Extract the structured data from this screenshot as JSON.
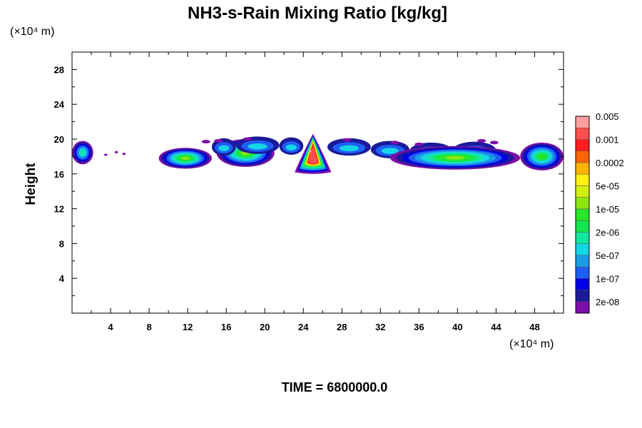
{
  "chart_data": {
    "type": "heatmap",
    "title": "NH3-s-Rain Mixing Ratio [kg/kg]",
    "ylabel": "Height",
    "xlabel": "",
    "x_unit": "(×10⁴ m)",
    "y_unit": "(×10⁴ m)",
    "time_label": "TIME = 6800000.0",
    "xlim": [
      0,
      51
    ],
    "ylim": [
      0,
      30
    ],
    "x_ticks": [
      "4",
      "8",
      "12",
      "16",
      "20",
      "24",
      "28",
      "32",
      "36",
      "40",
      "44",
      "48"
    ],
    "x_tick_values": [
      4,
      8,
      12,
      16,
      20,
      24,
      28,
      32,
      36,
      40,
      44,
      48
    ],
    "y_ticks": [
      "4",
      "8",
      "12",
      "16",
      "20",
      "24",
      "28"
    ],
    "y_tick_values": [
      4,
      8,
      12,
      16,
      20,
      24,
      28
    ],
    "colorbar": {
      "colors": [
        "#7b0fa8",
        "#1a1a9a",
        "#0000e6",
        "#1e5ef5",
        "#1a9be6",
        "#14d6e6",
        "#14e6a0",
        "#14e650",
        "#28e628",
        "#8ce614",
        "#d2f014",
        "#fff014",
        "#ffb400",
        "#ff6400",
        "#ff1e1e",
        "#ff5050",
        "#ffa0a0"
      ],
      "labels": [
        "2e-08",
        "1e-07",
        "5e-07",
        "2e-06",
        "1e-05",
        "5e-05",
        "0.0002",
        "0.001",
        "0.005"
      ],
      "label_levels": [
        1,
        3,
        5,
        7,
        9,
        11,
        13,
        15,
        17
      ]
    },
    "features": [
      {
        "name": "left-edge-cloud",
        "x_range": [
          0,
          2.2
        ],
        "y_range": [
          17.1,
          19.8
        ],
        "peak_level": 7
      },
      {
        "name": "small-wisps",
        "x_range": [
          3.2,
          5.5
        ],
        "y_range": [
          17.8,
          18.8
        ],
        "peak_level": 1
      },
      {
        "name": "cloud-12",
        "x_range": [
          9.0,
          14.5
        ],
        "y_range": [
          16.6,
          19.0
        ],
        "peak_level": 10
      },
      {
        "name": "cloud-19",
        "x_range": [
          15.0,
          21.0
        ],
        "y_range": [
          16.8,
          20.0
        ],
        "peak_level": 10
      },
      {
        "name": "upper-band",
        "x_range": [
          14.0,
          44.0
        ],
        "y_range": [
          17.6,
          20.0
        ],
        "peak_level": 6
      },
      {
        "name": "core-25",
        "x_range": [
          23.0,
          26.8
        ],
        "y_range": [
          16.2,
          20.6
        ],
        "peak_level": 16
      },
      {
        "name": "cloud-38",
        "x_range": [
          33.0,
          46.5
        ],
        "y_range": [
          16.5,
          19.2
        ],
        "peak_level": 10
      },
      {
        "name": "right-edge-cloud",
        "x_range": [
          46.5,
          51.0
        ],
        "y_range": [
          16.4,
          19.6
        ],
        "peak_level": 9
      }
    ]
  }
}
